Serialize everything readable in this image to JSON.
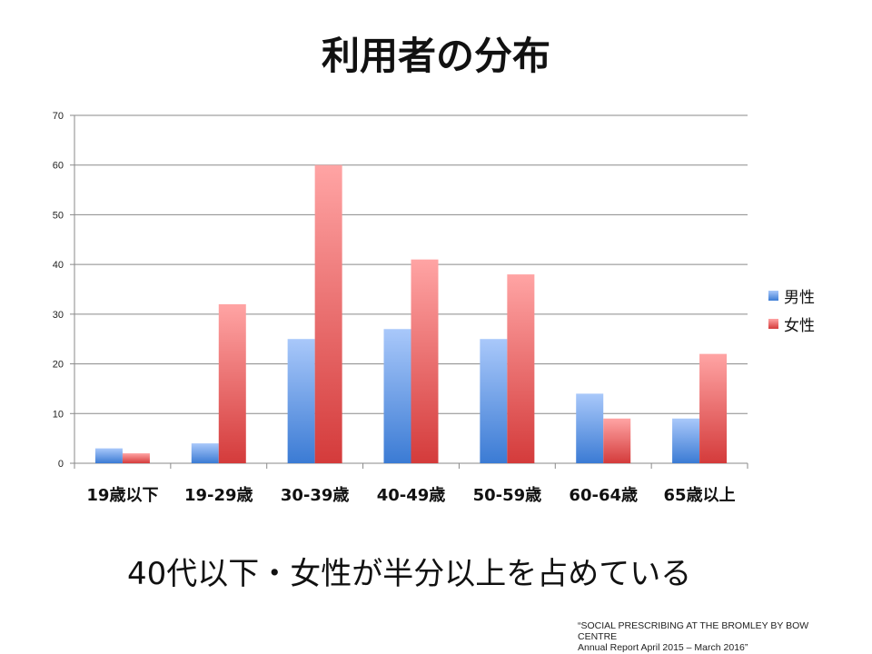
{
  "slide": {
    "title": "利用者の分布",
    "caption": "40代以下・女性が半分以上を占めている",
    "source_lines": [
      "“SOCIAL PRESCRIBING AT THE BROMLEY BY BOW",
      "CENTRE",
      "Annual Report April 2015 – March 2016”"
    ]
  },
  "chart_data": {
    "type": "bar",
    "title": "利用者の分布",
    "categories": [
      "19歳以下",
      "19-29歳",
      "30-39歳",
      "40-49歳",
      "50-59歳",
      "60-64歳",
      "65歳以上"
    ],
    "series": [
      {
        "name": "男性",
        "values": [
          3,
          4,
          25,
          27,
          25,
          14,
          9
        ],
        "color": "#4a86d6"
      },
      {
        "name": "女性",
        "values": [
          2,
          32,
          60,
          41,
          38,
          9,
          22
        ],
        "color": "#d9474a"
      }
    ],
    "ylim": [
      0,
      70
    ],
    "yticks": [
      0,
      10,
      20,
      30,
      40,
      50,
      60,
      70
    ],
    "grid": true,
    "legend": "right"
  }
}
